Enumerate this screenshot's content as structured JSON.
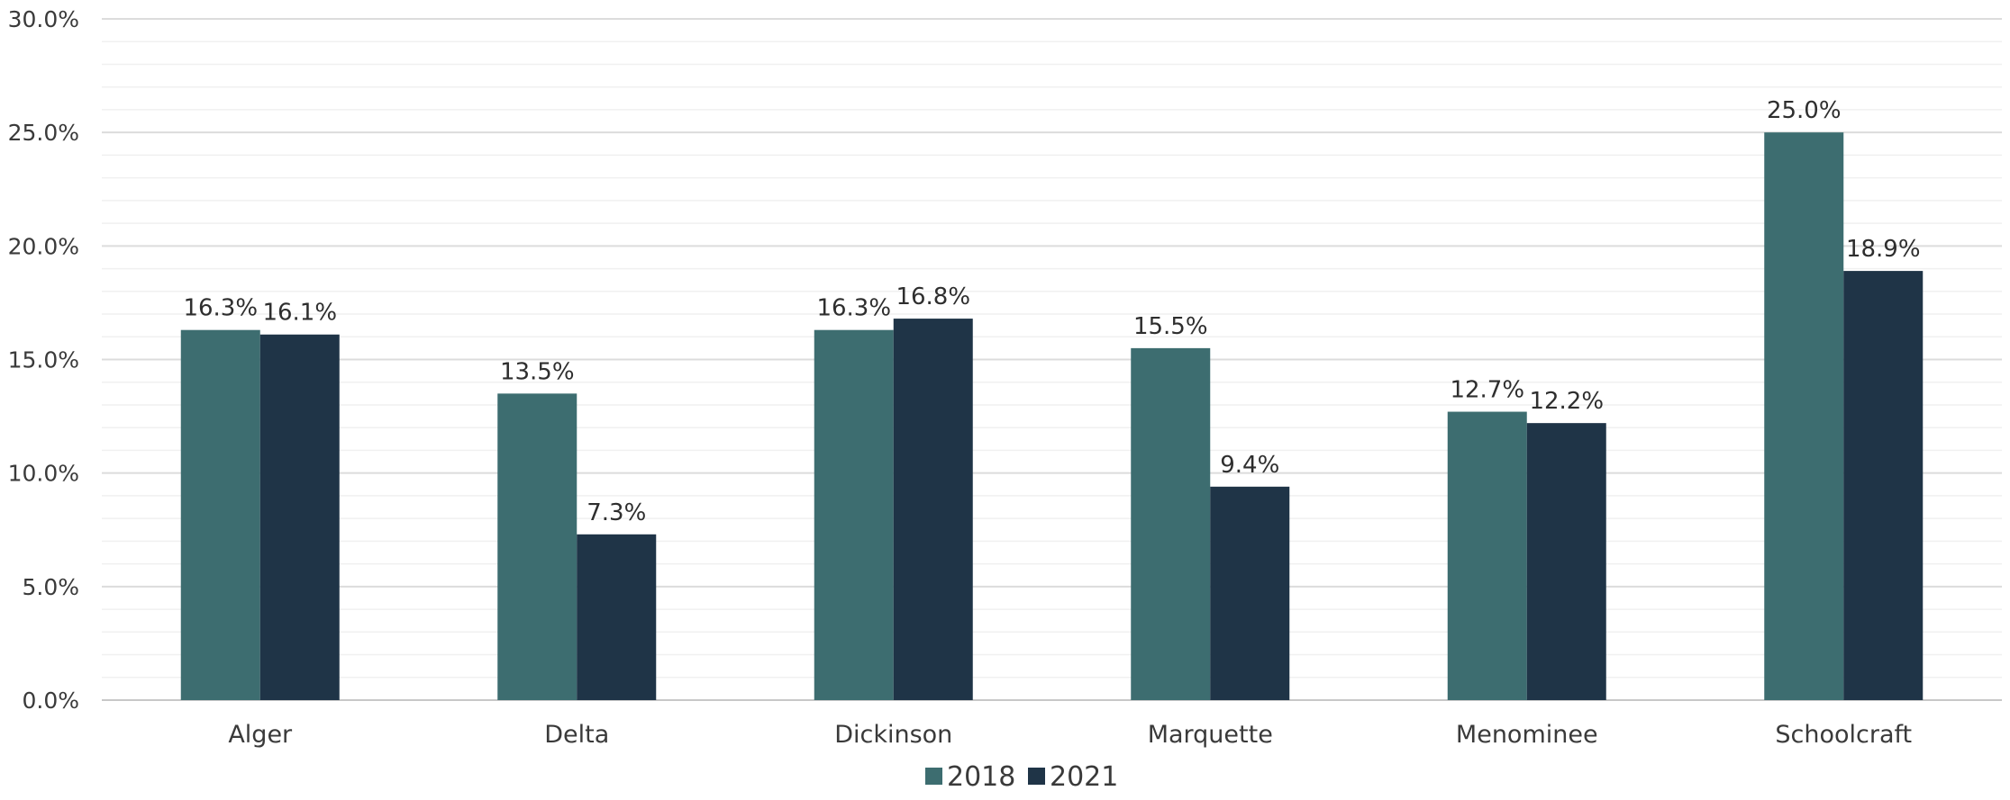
{
  "chart_data": {
    "type": "bar",
    "categories": [
      "Alger",
      "Delta",
      "Dickinson",
      "Marquette",
      "Menominee",
      "Schoolcraft"
    ],
    "series": [
      {
        "name": "2018",
        "color": "#3d6d70",
        "values": [
          16.3,
          13.5,
          16.3,
          15.5,
          12.7,
          25.0
        ]
      },
      {
        "name": "2021",
        "color": "#1f3447",
        "values": [
          16.1,
          7.3,
          16.8,
          9.4,
          12.2,
          18.9
        ]
      }
    ],
    "ylim": [
      0,
      30
    ],
    "yticks": [
      0,
      5,
      10,
      15,
      20,
      25,
      30
    ],
    "ytick_labels": [
      "0.0%",
      "5.0%",
      "10.0%",
      "15.0%",
      "20.0%",
      "25.0%",
      "30.0%"
    ],
    "data_labels": [
      [
        "16.3%",
        "13.5%",
        "16.3%",
        "15.5%",
        "12.7%",
        "25.0%"
      ],
      [
        "16.1%",
        "7.3%",
        "16.8%",
        "9.4%",
        "12.2%",
        "18.9%"
      ]
    ],
    "grid": true,
    "legend_position": "bottom-center",
    "title": "",
    "xlabel": "",
    "ylabel": ""
  }
}
